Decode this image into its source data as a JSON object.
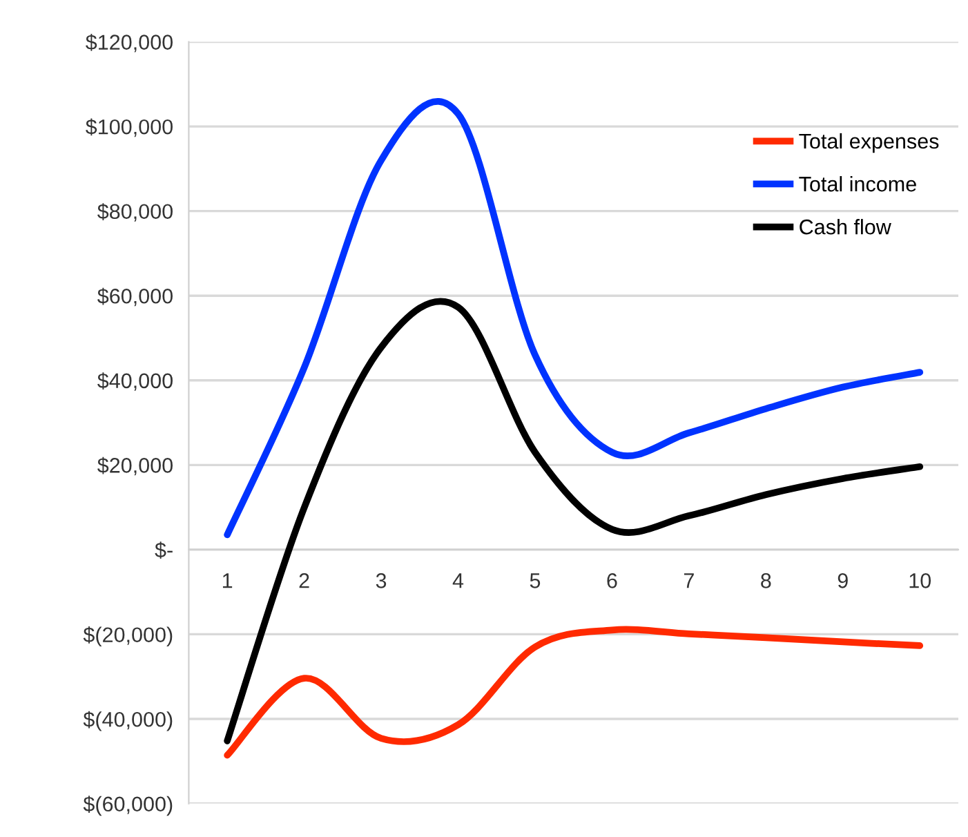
{
  "chart_data": {
    "type": "line",
    "categories": [
      "1",
      "2",
      "3",
      "4",
      "5",
      "6",
      "7",
      "8",
      "9",
      "10"
    ],
    "series": [
      {
        "name": "Total expenses",
        "color": "#ff2a00",
        "values": [
          -48600,
          -30400,
          -44600,
          -41400,
          -23000,
          -19000,
          -19900,
          -20800,
          -21800,
          -22700
        ]
      },
      {
        "name": "Total income",
        "color": "#0033ff",
        "values": [
          3500,
          43000,
          92000,
          103000,
          46000,
          23000,
          27600,
          33300,
          38400,
          41900
        ]
      },
      {
        "name": "Cash flow",
        "color": "#000000",
        "values": [
          -45200,
          9900,
          47800,
          57300,
          23000,
          4800,
          8000,
          13000,
          16800,
          19600
        ]
      }
    ],
    "ylim": [
      -60000,
      120000
    ],
    "yticks": [
      {
        "value": -60000,
        "label": "$(60,000)"
      },
      {
        "value": -40000,
        "label": "$(40,000)"
      },
      {
        "value": -20000,
        "label": "$(20,000)"
      },
      {
        "value": 0,
        "label": "$-"
      },
      {
        "value": 20000,
        "label": "$20,000"
      },
      {
        "value": 40000,
        "label": "$40,000"
      },
      {
        "value": 60000,
        "label": "$60,000"
      },
      {
        "value": 80000,
        "label": "$80,000"
      },
      {
        "value": 100000,
        "label": "$100,000"
      },
      {
        "value": 120000,
        "label": "$120,000"
      }
    ],
    "grid": "y",
    "legend": "top right",
    "marker": "none",
    "line_style": "solid"
  }
}
